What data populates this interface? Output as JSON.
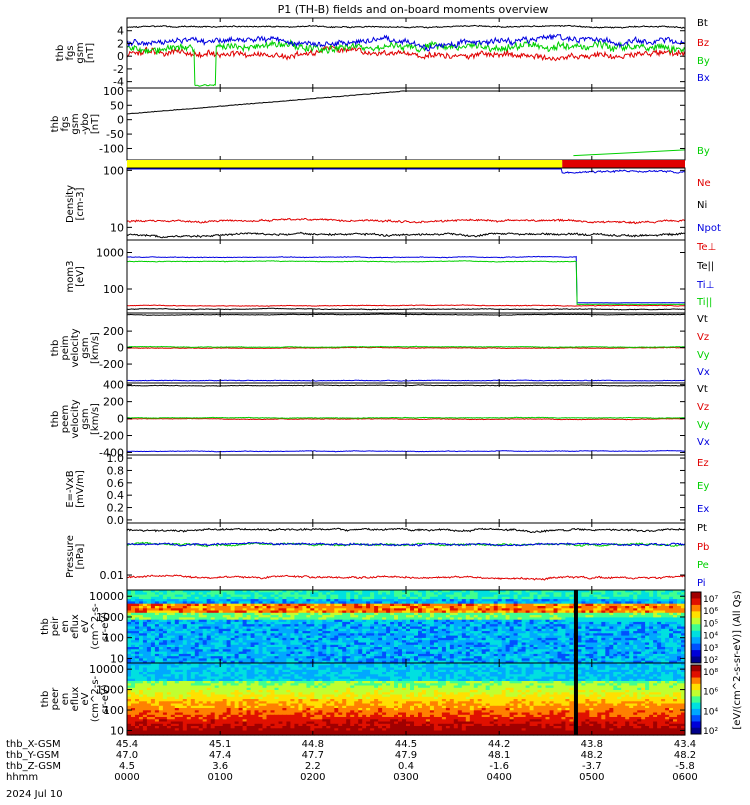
{
  "title": "P1 (TH-B) fields and on-board moments overview",
  "date_label": "2024 Jul 10",
  "colors": {
    "black": "#000000",
    "red": "#e00000",
    "green": "#00d000",
    "blue": "#0000e0",
    "yellow": "#ffff00",
    "bar_red": "#e00000"
  },
  "chart_data": [
    {
      "type": "line",
      "id": "fgs",
      "ylabel": [
        "thb",
        "fgs",
        "gsm",
        "[nT]"
      ],
      "ylim": [
        -5,
        6
      ],
      "yticks": [
        "4",
        "2",
        "0",
        "-2",
        "-4"
      ],
      "ytick_values": [
        4,
        2,
        0,
        -2,
        -4
      ],
      "series": [
        {
          "name": "Bt",
          "color": "#000000",
          "level": 4.6,
          "noise": 0.3
        },
        {
          "name": "Bz",
          "color": "#e00000",
          "level": 0.2,
          "noise": 1.5
        },
        {
          "name": "By",
          "color": "#00d000",
          "level": 1.5,
          "noise": 1.8
        },
        {
          "name": "Bx",
          "color": "#0000e0",
          "level": 2.2,
          "noise": 1.4
        }
      ]
    },
    {
      "type": "line",
      "id": "fgs_ybo",
      "ylabel": [
        "thb",
        "fgs",
        "gsm",
        "-ybo",
        "[nT]"
      ],
      "ylim": [
        -140,
        110
      ],
      "yticks": [
        "100",
        "50",
        "0",
        "-50",
        "-100"
      ],
      "ytick_values": [
        100,
        50,
        0,
        -50,
        -100
      ],
      "series": [
        {
          "name": "By",
          "color": "#00d000"
        }
      ],
      "ramp": {
        "x": [
          0.0,
          0.05,
          0.5
        ],
        "y": [
          20,
          25,
          100
        ]
      },
      "green_tail": {
        "x": [
          0.8,
          1.0
        ],
        "y": [
          -125,
          -105
        ]
      }
    },
    {
      "type": "bar_strip",
      "id": "mode",
      "segments": [
        {
          "x": [
            0.0,
            0.78
          ],
          "color": "#ffff00"
        },
        {
          "x": [
            0.78,
            1.0
          ],
          "color": "#e00000"
        }
      ]
    },
    {
      "type": "line",
      "id": "density",
      "scale": "log",
      "ylabel": [
        "Density",
        "[cm-3]"
      ],
      "ylim": [
        6,
        110
      ],
      "yticks": [
        "100",
        "10"
      ],
      "ytick_values": [
        100,
        10
      ],
      "series": [
        {
          "name": "Ne",
          "color": "#e00000",
          "level": 13
        },
        {
          "name": "Ni",
          "color": "#000000",
          "level": 7.5
        },
        {
          "name": "Npot",
          "color": "#0000e0",
          "level": 95
        }
      ]
    },
    {
      "type": "line",
      "id": "mom",
      "scale": "log",
      "ylabel": [
        "mom3",
        "[eV]"
      ],
      "ylim": [
        22,
        2200
      ],
      "yticks": [
        "1000",
        "100"
      ],
      "ytick_values": [
        1000,
        100
      ],
      "series": [
        {
          "name": "Te⊥",
          "color": "#e00000",
          "level": 35
        },
        {
          "name": "Te||",
          "color": "#000000",
          "level": 28
        },
        {
          "name": "Ti⊥",
          "color": "#0000e0",
          "level": 750
        },
        {
          "name": "Ti||",
          "color": "#00d000",
          "level": 570
        }
      ]
    },
    {
      "type": "line",
      "id": "peim",
      "ylabel": [
        "thb",
        "peim",
        "velocity",
        "gsm",
        "[km/s]"
      ],
      "ylim": [
        -430,
        420
      ],
      "yticks": [
        "200",
        "0",
        "-200"
      ],
      "ytick_values": [
        200,
        0,
        -200
      ],
      "series": [
        {
          "name": "Vt",
          "color": "#000000",
          "level": 400
        },
        {
          "name": "Vz",
          "color": "#e00000",
          "level": -5
        },
        {
          "name": "Vy",
          "color": "#00d000",
          "level": 8
        },
        {
          "name": "Vx",
          "color": "#0000e0",
          "level": -400
        }
      ]
    },
    {
      "type": "line",
      "id": "peem",
      "ylabel": [
        "thb",
        "peem",
        "velocity",
        "gsm",
        "[km/s]"
      ],
      "ylim": [
        -430,
        420
      ],
      "yticks": [
        "400",
        "200",
        "0",
        "-200",
        "-400"
      ],
      "ytick_values": [
        400,
        200,
        0,
        -200,
        -400
      ],
      "series": [
        {
          "name": "Vt",
          "color": "#000000",
          "level": 390
        },
        {
          "name": "Vz",
          "color": "#e00000",
          "level": -5
        },
        {
          "name": "Vy",
          "color": "#00d000",
          "level": 10
        },
        {
          "name": "Vx",
          "color": "#0000e0",
          "level": -385
        }
      ]
    },
    {
      "type": "line",
      "id": "efield",
      "ylabel": [
        "E=-VxB",
        "[mV/m]"
      ],
      "ylim": [
        -0.05,
        1.05
      ],
      "yticks": [
        "1.0",
        "0.8",
        "0.6",
        "0.4",
        "0.2",
        "0.0"
      ],
      "ytick_values": [
        1.0,
        0.8,
        0.6,
        0.4,
        0.2,
        0.0
      ],
      "series": [
        {
          "name": "Ez",
          "color": "#e00000"
        },
        {
          "name": "Ey",
          "color": "#00d000"
        },
        {
          "name": "Ex",
          "color": "#0000e0"
        }
      ]
    },
    {
      "type": "line",
      "id": "pressure",
      "scale": "log",
      "ylabel": [
        "Pressure",
        "[nPa]"
      ],
      "ylim": [
        0.0045,
        0.16
      ],
      "yticks": [
        "0.01"
      ],
      "ytick_values": [
        0.01
      ],
      "series": [
        {
          "name": "Pt",
          "color": "#000000",
          "level": 0.11
        },
        {
          "name": "Pb",
          "color": "#e00000",
          "level": 0.009
        },
        {
          "name": "Pe",
          "color": "#00d000",
          "level": 0.05
        },
        {
          "name": "Pi",
          "color": "#0000e0",
          "level": 0.052
        }
      ]
    },
    {
      "type": "heatmap",
      "id": "peir",
      "scale": "log",
      "ylabel": [
        "thb",
        "peir",
        "en",
        "eflux",
        "eV",
        "(cm^2-s-",
        "sr-eV)"
      ],
      "ylim": [
        6,
        20000
      ],
      "yticks": [
        "10000",
        "1000",
        "100",
        "10"
      ],
      "ytick_values": [
        10000,
        1000,
        100,
        10
      ]
    },
    {
      "type": "heatmap",
      "id": "peer",
      "scale": "log",
      "ylabel": [
        "thb",
        "peer",
        "en",
        "eflux",
        "eV",
        "(cm^2-s-",
        "sr-eV)"
      ],
      "ylim": [
        6,
        20000
      ],
      "yticks": [
        "10000",
        "1000",
        "100",
        "10"
      ],
      "ytick_values": [
        10000,
        1000,
        100,
        10
      ]
    }
  ],
  "colorbar": {
    "title": "[eV/(cm^2-s-sr-eV)] (All Qs)",
    "peir_ticks": [
      "10⁷",
      "10⁶",
      "10⁵",
      "10⁴",
      "10³",
      "10²"
    ],
    "peer_ticks": [
      "10⁸",
      "10⁶",
      "10⁴",
      "10²"
    ]
  },
  "x_axis": {
    "ticks": [
      0.0,
      0.167,
      0.333,
      0.5,
      0.667,
      0.833,
      1.0
    ],
    "rows": [
      {
        "label": "thb_X-GSM",
        "values": [
          "45.4",
          "45.1",
          "44.8",
          "44.5",
          "44.2",
          "43.8",
          "43.4"
        ]
      },
      {
        "label": "thb_Y-GSM",
        "values": [
          "47.0",
          "47.4",
          "47.7",
          "47.9",
          "48.1",
          "48.2",
          "48.2"
        ]
      },
      {
        "label": "thb_Z-GSM",
        "values": [
          "4.5",
          "3.6",
          "2.2",
          "0.4",
          "-1.6",
          "-3.7",
          "-5.8"
        ]
      },
      {
        "label": "hhmm",
        "values": [
          "0000",
          "0100",
          "0200",
          "0300",
          "0400",
          "0500",
          "0600"
        ]
      }
    ]
  }
}
